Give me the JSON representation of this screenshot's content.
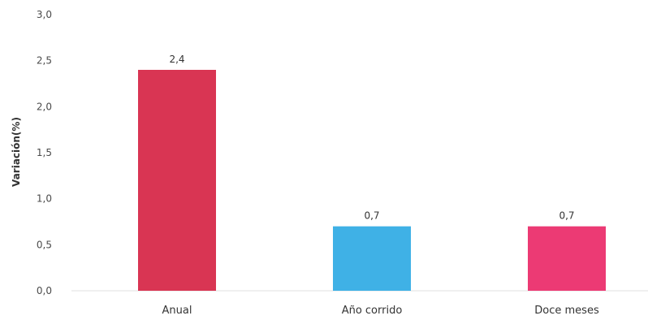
{
  "chart_data": {
    "type": "bar",
    "title": "",
    "xlabel": "",
    "ylabel": "Variación(%)",
    "categories": [
      "Anual",
      "Año corrido",
      "Doce meses"
    ],
    "values": [
      2.4,
      0.7,
      0.7
    ],
    "data_labels": [
      "2,4",
      "0,7",
      "0,7"
    ],
    "colors": [
      "#d93553",
      "#3fb1e6",
      "#ec3a74"
    ],
    "ylim": [
      0,
      3
    ],
    "yticks": [
      0,
      0.5,
      1,
      1.5,
      2,
      2.5,
      3
    ],
    "ytick_labels": [
      "0,0",
      "0,5",
      "1,0",
      "1,5",
      "2,0",
      "2,5",
      "3,0"
    ],
    "grid": false,
    "legend": "none"
  }
}
